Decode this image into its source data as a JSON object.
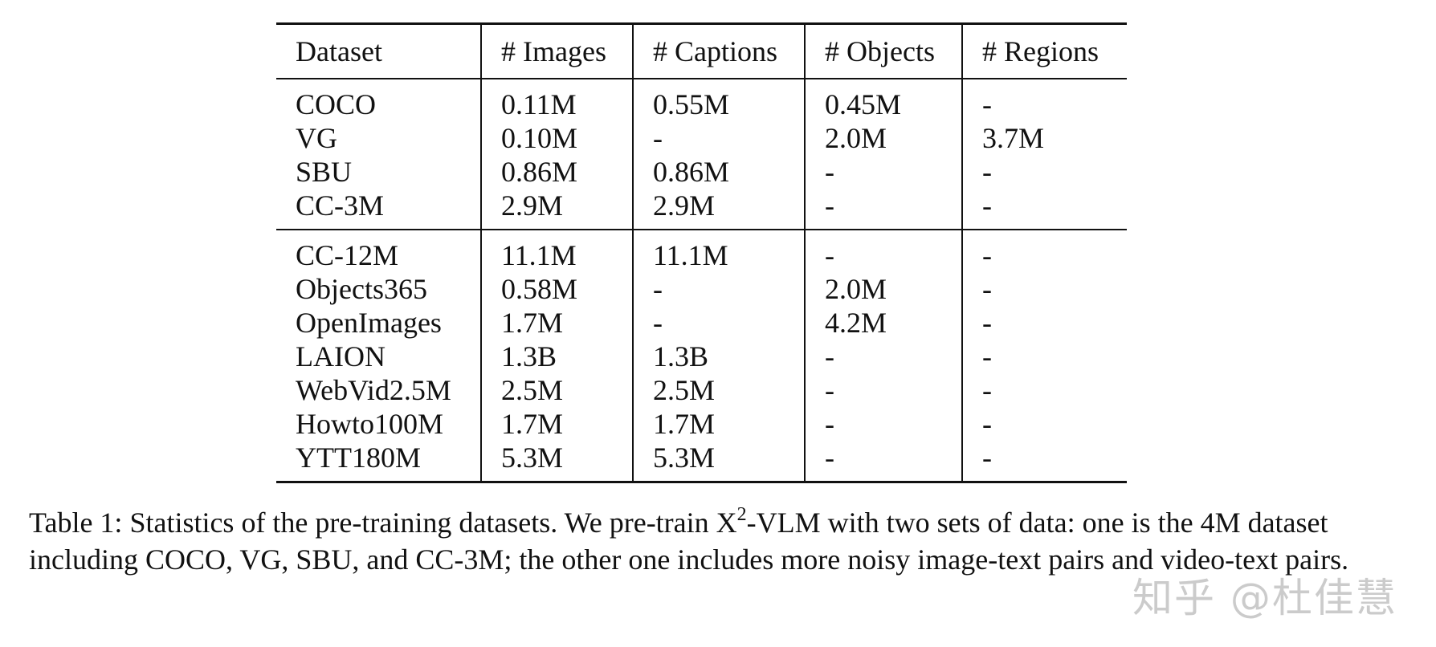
{
  "table": {
    "headers": [
      "Dataset",
      "# Images",
      "# Captions",
      "# Objects",
      "# Regions"
    ],
    "group1": [
      [
        "COCO",
        "0.11M",
        "0.55M",
        "0.45M",
        "-"
      ],
      [
        "VG",
        "0.10M",
        "-",
        "2.0M",
        "3.7M"
      ],
      [
        "SBU",
        "0.86M",
        "0.86M",
        "-",
        "-"
      ],
      [
        "CC-3M",
        "2.9M",
        "2.9M",
        "-",
        "-"
      ]
    ],
    "group2": [
      [
        "CC-12M",
        "11.1M",
        "11.1M",
        "-",
        "-"
      ],
      [
        "Objects365",
        "0.58M",
        "-",
        "2.0M",
        "-"
      ],
      [
        "OpenImages",
        "1.7M",
        "-",
        "4.2M",
        "-"
      ],
      [
        "LAION",
        "1.3B",
        "1.3B",
        "-",
        "-"
      ],
      [
        "WebVid2.5M",
        "2.5M",
        "2.5M",
        "-",
        "-"
      ],
      [
        "Howto100M",
        "1.7M",
        "1.7M",
        "-",
        "-"
      ],
      [
        "YTT180M",
        "5.3M",
        "5.3M",
        "-",
        "-"
      ]
    ]
  },
  "caption": {
    "part1": "Table 1: Statistics of the pre-training datasets. We pre-train X",
    "sup": "2",
    "part2": "-VLM with two sets of data: one is the 4M dataset including COCO, VG, SBU, and CC-3M; the other one includes more noisy image-text pairs and video-text pairs."
  },
  "watermark": "知乎 @杜佳慧"
}
